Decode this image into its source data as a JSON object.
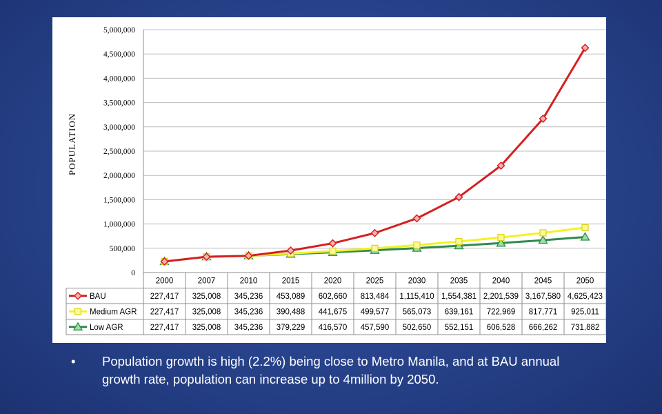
{
  "slide": {
    "bullet_symbol": "•",
    "bullet_text": "Population growth is high (2.2%) being close to Metro Manila, and at BAU annual growth rate, population can increase up to 4million by 2050."
  },
  "chart_data": {
    "type": "line",
    "title": "",
    "xlabel": "",
    "ylabel": "POPULATION",
    "ylim": [
      0,
      5000000
    ],
    "yticks": [
      0,
      500000,
      1000000,
      1500000,
      2000000,
      2500000,
      3000000,
      3500000,
      4000000,
      4500000,
      5000000
    ],
    "ytick_labels": [
      "0",
      "500,000",
      "1,000,000",
      "1,500,000",
      "2,000,000",
      "2,500,000",
      "3,000,000",
      "3,500,000",
      "4,000,000",
      "4,500,000",
      "5,000,000"
    ],
    "grid": true,
    "legend_placement": "data table below chart",
    "categories": [
      "2000",
      "2007",
      "2010",
      "2015",
      "2020",
      "2025",
      "2030",
      "2035",
      "2040",
      "2045",
      "2050"
    ],
    "series": [
      {
        "name": "BAU",
        "color": "#d42020",
        "marker": "diamond",
        "values": [
          227417,
          325008,
          345236,
          453089,
          602660,
          813484,
          1115410,
          1554381,
          2201539,
          3167580,
          4625423
        ],
        "labels": [
          "227,417",
          "325,008",
          "345,236",
          "453,089",
          "602,660",
          "813,484",
          "1,115,410",
          "1,554,381",
          "2,201,539",
          "3,167,580",
          "4,625,423"
        ]
      },
      {
        "name": "Medium AGR",
        "color": "#f4f222",
        "marker": "square",
        "values": [
          227417,
          325008,
          345236,
          390488,
          441675,
          499577,
          565073,
          639161,
          722969,
          817771,
          925011
        ],
        "labels": [
          "227,417",
          "325,008",
          "345,236",
          "390,488",
          "441,675",
          "499,577",
          "565,073",
          "639,161",
          "722,969",
          "817,771",
          "925,011"
        ]
      },
      {
        "name": "Low AGR",
        "color": "#2e8b4a",
        "marker": "triangle",
        "values": [
          227417,
          325008,
          345236,
          379229,
          416570,
          457590,
          502650,
          552151,
          606528,
          666262,
          731882
        ],
        "labels": [
          "227,417",
          "325,008",
          "345,236",
          "379,229",
          "416,570",
          "457,590",
          "502,650",
          "552,151",
          "606,528",
          "666,262",
          "731,882"
        ]
      }
    ]
  }
}
